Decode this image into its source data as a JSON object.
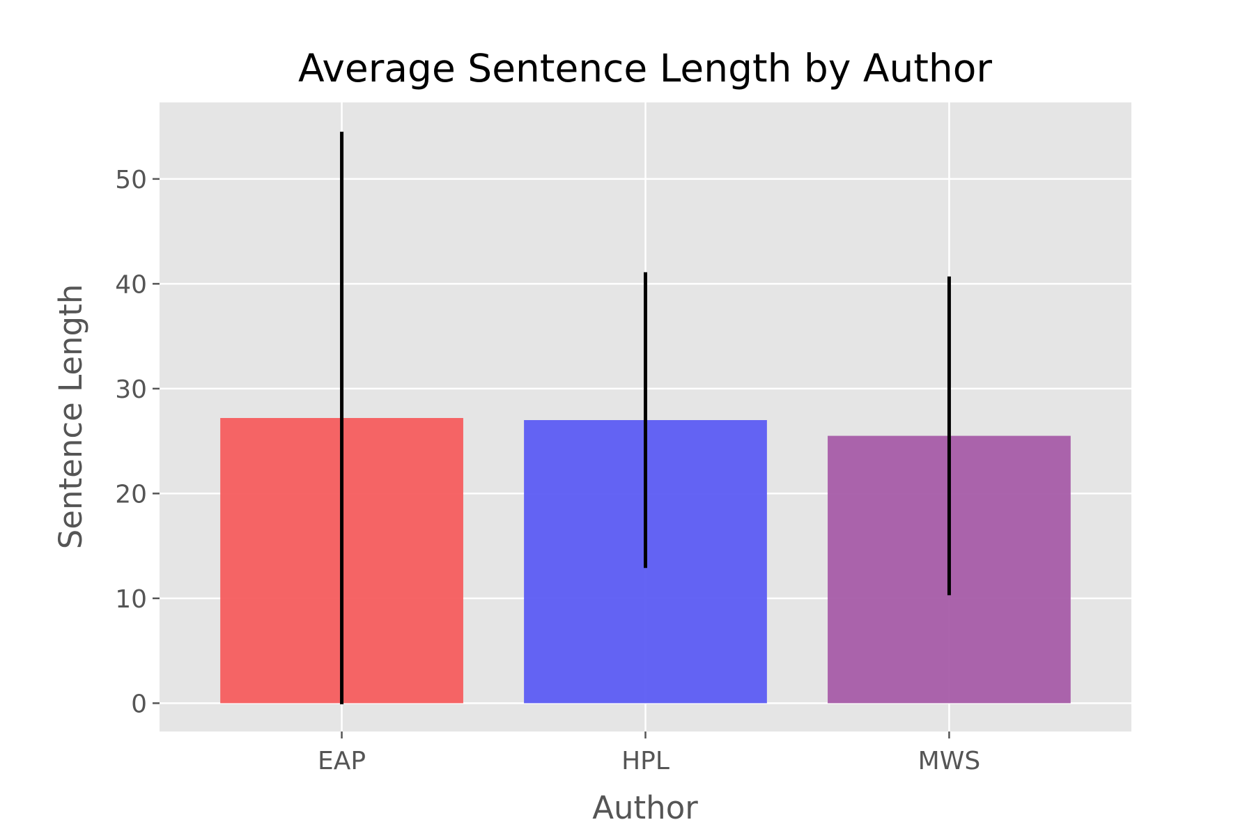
{
  "chart_data": {
    "type": "bar",
    "title": "Average Sentence Length by Author",
    "xlabel": "Author",
    "ylabel": "Sentence Length",
    "categories": [
      "EAP",
      "HPL",
      "MWS"
    ],
    "values": [
      27.2,
      27.0,
      25.5
    ],
    "error": [
      27.3,
      14.1,
      15.2
    ],
    "colors": [
      "#f55d5e",
      "#5c5cf3",
      "#a65ca8"
    ],
    "ylim": [
      -2.7,
      57.3
    ],
    "yticks": [
      0,
      10,
      20,
      30,
      40,
      50
    ],
    "ytick_labels": [
      "0",
      "10",
      "20",
      "30",
      "40",
      "50"
    ],
    "grid": true,
    "background": "#e5e5e5",
    "legend": "none"
  }
}
